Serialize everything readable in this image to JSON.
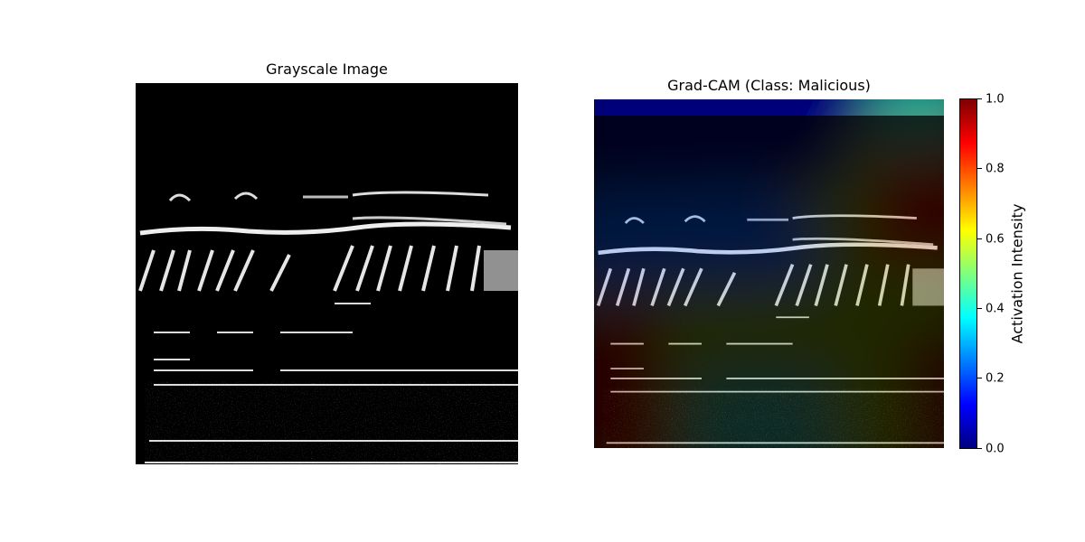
{
  "left_panel": {
    "title": "Grayscale Image"
  },
  "right_panel": {
    "title": "Grad-CAM (Class: Malicious)"
  },
  "colorbar": {
    "label": "Activation Intensity",
    "ticks": [
      "0.0",
      "0.2",
      "0.4",
      "0.6",
      "0.8",
      "1.0"
    ],
    "colormap": "jet",
    "range": [
      0.0,
      1.0
    ]
  }
}
